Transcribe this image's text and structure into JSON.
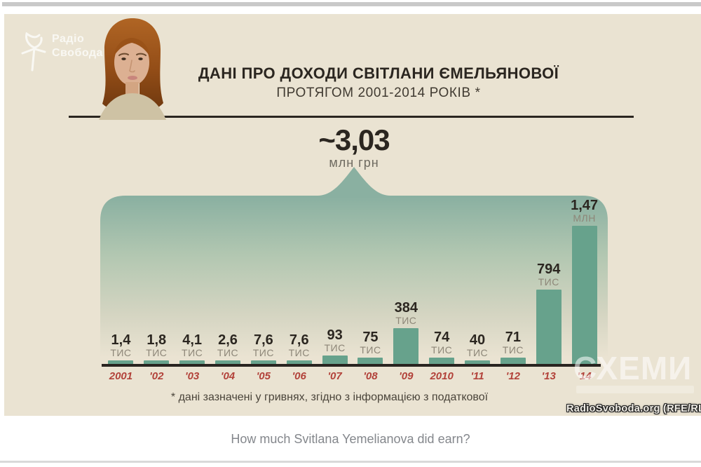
{
  "infographic": {
    "logo": {
      "line1": "Радіо",
      "line2": "Свобода"
    },
    "title": "ДАНІ ПРО ДОХОДИ СВІТЛАНИ ЄМЕЛЬЯНОВОЇ",
    "subtitle": "ПРОТЯГОМ 2001-2014 РОКІВ *",
    "callout": {
      "value": "~3,03",
      "unit": "млн грн"
    },
    "footnote": "* дані зазначені у гривнях, згідно з інформацією з податкової",
    "watermark": "СХЕМИ",
    "credit": "RadioSvoboda.org (RFE/RL"
  },
  "chart_data": {
    "type": "bar",
    "title": "Дані про доходи Світлани Ємельянової протягом 2001-2014 років",
    "categories": [
      "2001",
      "'02",
      "'03",
      "'04",
      "'05",
      "'06",
      "'07",
      "'08",
      "'09",
      "2010",
      "'11",
      "'12",
      "'13",
      "'14"
    ],
    "values_thousand_uah": [
      1.4,
      1.8,
      4.1,
      2.6,
      7.6,
      7.6,
      93,
      75,
      384,
      74,
      40,
      71,
      794,
      1470
    ],
    "bar_labels": [
      {
        "value": "1,4",
        "unit": "ТИС"
      },
      {
        "value": "1,8",
        "unit": "ТИС"
      },
      {
        "value": "4,1",
        "unit": "ТИС"
      },
      {
        "value": "2,6",
        "unit": "ТИС"
      },
      {
        "value": "7,6",
        "unit": "ТИС"
      },
      {
        "value": "7,6",
        "unit": "ТИС"
      },
      {
        "value": "93",
        "unit": "ТИС"
      },
      {
        "value": "75",
        "unit": "ТИС"
      },
      {
        "value": "384",
        "unit": "ТИС"
      },
      {
        "value": "74",
        "unit": "ТИС"
      },
      {
        "value": "40",
        "unit": "ТИС"
      },
      {
        "value": "71",
        "unit": "ТИС"
      },
      {
        "value": "794",
        "unit": "ТИС"
      },
      {
        "value": "1,47",
        "unit": "МЛН"
      }
    ],
    "total_label": "~3,03 млн грн",
    "currency_note": "значення у гривнях",
    "ylim": [
      0,
      1500
    ],
    "legend": "none",
    "grid": false
  },
  "page": {
    "caption": "How much Svitlana Yemelianova did earn?"
  },
  "colors": {
    "cream": "#eae3d2",
    "panel_teal_top": "#8ab0a1",
    "panel_teal_mid": "#b2c7b1",
    "bar_teal": "#67a28c",
    "ink": "#2b2620",
    "red_year": "#b2423a",
    "unit_gray": "#8d8678",
    "rule_gray": "#c9c9c9",
    "rule_light": "#d9d9d9"
  }
}
